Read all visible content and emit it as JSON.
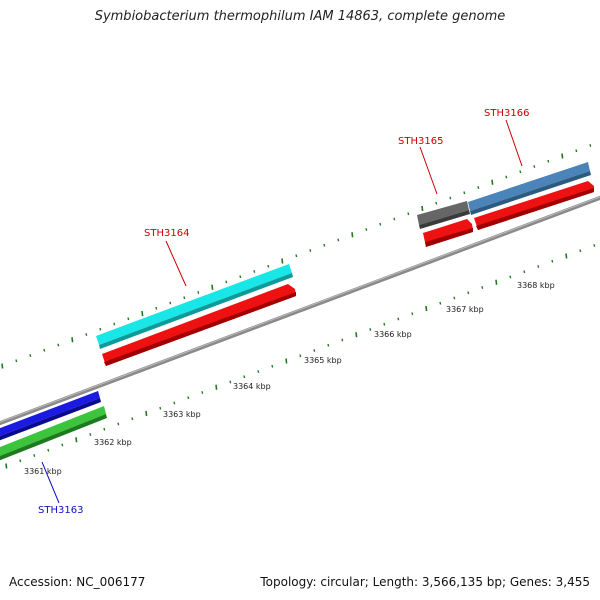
{
  "title": "Symbiobacterium thermophilum IAM 14863, complete genome",
  "footer": {
    "accession": "Accession: NC_006177",
    "summary": "Topology: circular; Length: 3,566,135 bp; Genes: 3,455"
  },
  "kbp_labels": [
    "3361 kbp",
    "3362 kbp",
    "3363 kbp",
    "3364 kbp",
    "3365 kbp",
    "3366 kbp",
    "3367 kbp",
    "3368 kbp"
  ],
  "genes": [
    {
      "name": "STH3163",
      "label_color": "#1010c0",
      "track_colors": [
        "#1a1ae0",
        "#3cc43c"
      ]
    },
    {
      "name": "STH3164",
      "label_color": "#cc0000",
      "track_colors": [
        "#19e6e6",
        "#ee1111"
      ]
    },
    {
      "name": "STH3165",
      "label_color": "#cc0000",
      "track_colors": [
        "#666666",
        "#ee1111"
      ]
    },
    {
      "name": "STH3166",
      "label_color": "#cc0000",
      "track_colors": [
        "#4a84b8",
        "#ee1111"
      ]
    }
  ],
  "colors": {
    "backbone": "#8a8a8a",
    "ticks": "#1f7a1f"
  }
}
